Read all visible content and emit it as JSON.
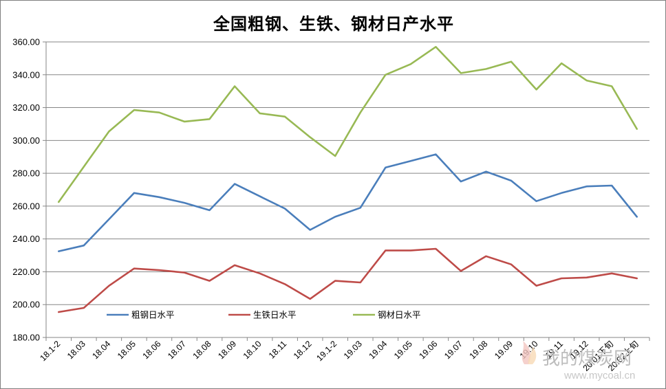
{
  "chart_data": {
    "type": "line",
    "title": "全国粗钢、生铁、钢材日产水平",
    "categories": [
      "18.1-2",
      "18.03",
      "18.04",
      "18.05",
      "18.06",
      "18.07",
      "18.08",
      "18.09",
      "18.10",
      "18.11",
      "18.12",
      "19.1-2",
      "19.03",
      "19.04",
      "19.05",
      "19.06",
      "19.07",
      "19.08",
      "19.09",
      "19.10",
      "19.11",
      "19.12",
      "20.01下旬",
      "20.02上旬"
    ],
    "ylim": [
      180,
      360
    ],
    "yticks": [
      "180.00",
      "200.00",
      "220.00",
      "240.00",
      "260.00",
      "280.00",
      "300.00",
      "320.00",
      "340.00",
      "360.00"
    ],
    "grid": true,
    "legend_position": "inside-bottom",
    "series": [
      {
        "name": "粗钢日水平",
        "color": "#4a7ebb",
        "values": [
          232.5,
          236,
          252,
          268,
          265.5,
          262,
          257.5,
          273.5,
          266,
          258.5,
          245.5,
          253.5,
          259,
          283.5,
          287.5,
          291.5,
          275,
          281,
          275.5,
          263,
          268,
          272,
          272.5,
          253.5
        ]
      },
      {
        "name": "生铁日水平",
        "color": "#be4b48",
        "values": [
          195.5,
          198,
          211.5,
          222,
          221,
          219.5,
          214.5,
          224,
          219,
          212.5,
          203.5,
          214.5,
          213.5,
          233,
          233,
          234,
          220.5,
          229.5,
          224.5,
          211.5,
          216,
          216.5,
          219,
          216
        ]
      },
      {
        "name": "钢材日水平",
        "color": "#98b954",
        "values": [
          262.5,
          284,
          305.5,
          318.5,
          317,
          311.5,
          313,
          333,
          316.5,
          314.5,
          302,
          290.5,
          317,
          340,
          346.5,
          357,
          341,
          343.5,
          348,
          331,
          347,
          336.5,
          333,
          307
        ]
      }
    ]
  },
  "watermark": {
    "text": "我的煤炭网",
    "url": "www.mycoal.cn"
  }
}
